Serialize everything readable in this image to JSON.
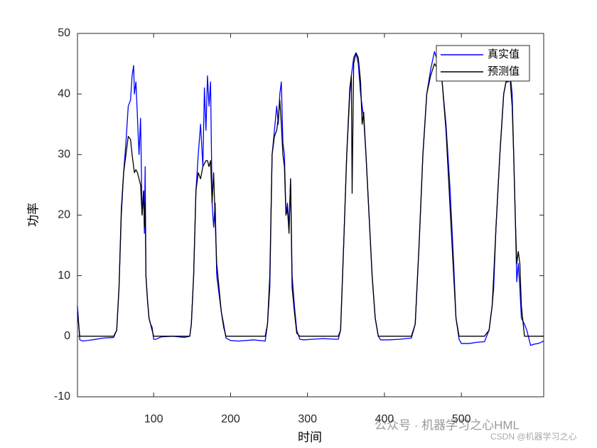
{
  "chart_data": {
    "type": "line",
    "ylabel": "功率",
    "xlabel": "时间",
    "xlim": [
      1,
      607
    ],
    "ylim": [
      -10,
      50
    ],
    "xticks": [
      100,
      200,
      300,
      400,
      500
    ],
    "yticks": [
      -10,
      0,
      10,
      20,
      30,
      40,
      50
    ],
    "legend": "upper right",
    "x": [
      1,
      4,
      8,
      20,
      35,
      48,
      52,
      55,
      58,
      61,
      64,
      67,
      70,
      72,
      74,
      75,
      77,
      79,
      81,
      83,
      85,
      87,
      88,
      89,
      90,
      92,
      94,
      96,
      98,
      100,
      103,
      110,
      125,
      140,
      147,
      149,
      152,
      155,
      158,
      161,
      164,
      166,
      168,
      170,
      172,
      174,
      176,
      178,
      180,
      182,
      185,
      188,
      191,
      194,
      197,
      200,
      210,
      230,
      245,
      248,
      251,
      254,
      257,
      260,
      262,
      264,
      266,
      268,
      270,
      272,
      274,
      276,
      278,
      280,
      283,
      286,
      290,
      295,
      305,
      320,
      340,
      343,
      347,
      351,
      355,
      357,
      358,
      360,
      363,
      366,
      369,
      371,
      373,
      376,
      380,
      384,
      388,
      392,
      395,
      405,
      420,
      435,
      440,
      445,
      450,
      455,
      460,
      465,
      470,
      475,
      480,
      485,
      490,
      493,
      497,
      500,
      510,
      520,
      530,
      536,
      540,
      542,
      545,
      550,
      555,
      558,
      561,
      563,
      566,
      568,
      570,
      572,
      574,
      576,
      578,
      582,
      585,
      590,
      595,
      600,
      607
    ],
    "series": [
      {
        "name": "真实值",
        "color": "#0000ff",
        "values": [
          5,
          -0.6,
          -0.8,
          -0.6,
          -0.3,
          -0.2,
          1,
          8,
          20,
          27,
          32,
          38,
          39,
          43,
          44.7,
          40,
          42,
          36,
          30,
          36,
          20,
          24,
          17,
          28,
          10,
          6,
          3,
          2,
          1.5,
          -0.5,
          -0.5,
          -0.1,
          0,
          -0.2,
          0,
          2,
          10,
          24,
          30,
          35,
          28,
          41,
          34,
          43,
          38,
          42,
          22,
          18,
          22,
          10,
          7,
          4,
          2,
          -0.3,
          -0.5,
          -0.7,
          -0.8,
          -0.6,
          -0.8,
          2,
          8,
          30,
          34,
          38,
          35,
          40,
          42,
          32,
          30,
          20,
          22,
          18,
          26,
          10,
          5,
          1,
          -0.5,
          -0.6,
          -0.5,
          -0.4,
          -0.5,
          1,
          15,
          30,
          40,
          43,
          44,
          46,
          46.8,
          45,
          40,
          38,
          36,
          30,
          20,
          10,
          3,
          0,
          -0.6,
          -0.6,
          -0.5,
          -0.3,
          2,
          15,
          30,
          40,
          44,
          47,
          45,
          42,
          35,
          25,
          12,
          3,
          -0.5,
          -1.2,
          -1.2,
          -1,
          -0.9,
          1,
          5,
          8,
          18,
          30,
          40,
          42,
          43,
          44,
          40,
          30,
          20,
          9,
          12,
          8,
          3,
          2,
          1,
          -1.5,
          -1.3,
          -1.2,
          -0.8
        ]
      },
      {
        "name": "预测值",
        "color": "#000000",
        "values": [
          4,
          0,
          0,
          0,
          0,
          0,
          1,
          8,
          21,
          27,
          30,
          33,
          32.5,
          30,
          28,
          27,
          27.5,
          27,
          26,
          25,
          20,
          24,
          18,
          22,
          10,
          6,
          3,
          2,
          1,
          0,
          0,
          0,
          0,
          0,
          0,
          2,
          10,
          24,
          27,
          26,
          28,
          28.5,
          29,
          29,
          28,
          29,
          22,
          27,
          19,
          12,
          8,
          4,
          1.5,
          0,
          0,
          0,
          0,
          0,
          0,
          2,
          10,
          30,
          33,
          34,
          36,
          39,
          35,
          30,
          28,
          20,
          21,
          17,
          26,
          8,
          4,
          0.5,
          0,
          0,
          0,
          0,
          0,
          1,
          15,
          30,
          41,
          43,
          23.6,
          45,
          46.8,
          46,
          42,
          35,
          37,
          30,
          20,
          10,
          3,
          0,
          0,
          0,
          0,
          0,
          2,
          15,
          30,
          40,
          43,
          45,
          44,
          42,
          34,
          22,
          10,
          3,
          0,
          0,
          0,
          0,
          0,
          1,
          5,
          10,
          18,
          30,
          40,
          42,
          42,
          43,
          38,
          30,
          20,
          12,
          14,
          12,
          5,
          0,
          0,
          0,
          0,
          0,
          0
        ]
      }
    ]
  },
  "watermark": {
    "wechat": "公众号 · 机器学习之心HML",
    "csdn": "CSDN @机器学习之心"
  }
}
